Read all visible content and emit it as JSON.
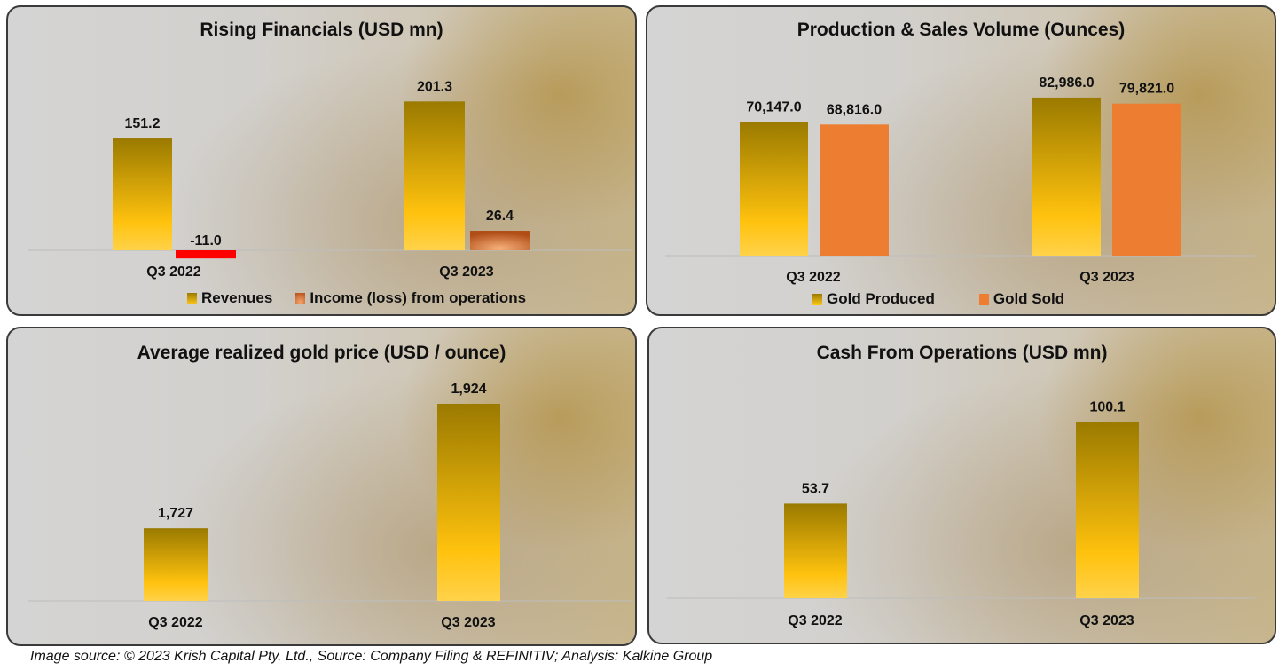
{
  "colors": {
    "gold_top": "#9a7a00",
    "gold_bottom": "#ffc81a",
    "income": "#c9652a",
    "negative": "#ff0000",
    "gold_sold": "#ed7d31"
  },
  "chart_data": [
    {
      "type": "bar",
      "title": "Rising Financials (USD mn)",
      "categories": [
        "Q3 2022",
        "Q3 2023"
      ],
      "series": [
        {
          "name": "Revenues",
          "values": [
            151.2,
            201.3
          ]
        },
        {
          "name": "Income (loss) from operations",
          "values": [
            -11.0,
            26.4
          ]
        }
      ],
      "label_decimals": 1,
      "legend": "bottom"
    },
    {
      "type": "bar",
      "title": "Production & Sales Volume (Ounces)",
      "categories": [
        "Q3 2022",
        "Q3 2023"
      ],
      "series": [
        {
          "name": "Gold Produced",
          "values": [
            70147.0,
            82986.0
          ]
        },
        {
          "name": "Gold Sold",
          "values": [
            68816.0,
            79821.0
          ]
        }
      ],
      "label_decimals": 1,
      "legend": "bottom"
    },
    {
      "type": "bar",
      "title": "Average realized gold price (USD / ounce)",
      "categories": [
        "Q3 2022",
        "Q3 2023"
      ],
      "series": [
        {
          "name": "Average realized gold price",
          "values": [
            1727,
            1924
          ]
        }
      ],
      "label_decimals": 0,
      "legend": "none"
    },
    {
      "type": "bar",
      "title": "Cash From Operations (USD mn)",
      "categories": [
        "Q3 2022",
        "Q3 2023"
      ],
      "series": [
        {
          "name": "Cash From Operations",
          "values": [
            53.7,
            100.1
          ]
        }
      ],
      "label_decimals": 1,
      "legend": "none"
    }
  ],
  "footer": "Image source: © 2023 Krish Capital Pty. Ltd., Source: Company Filing & REFINITIV; Analysis: Kalkine Group"
}
